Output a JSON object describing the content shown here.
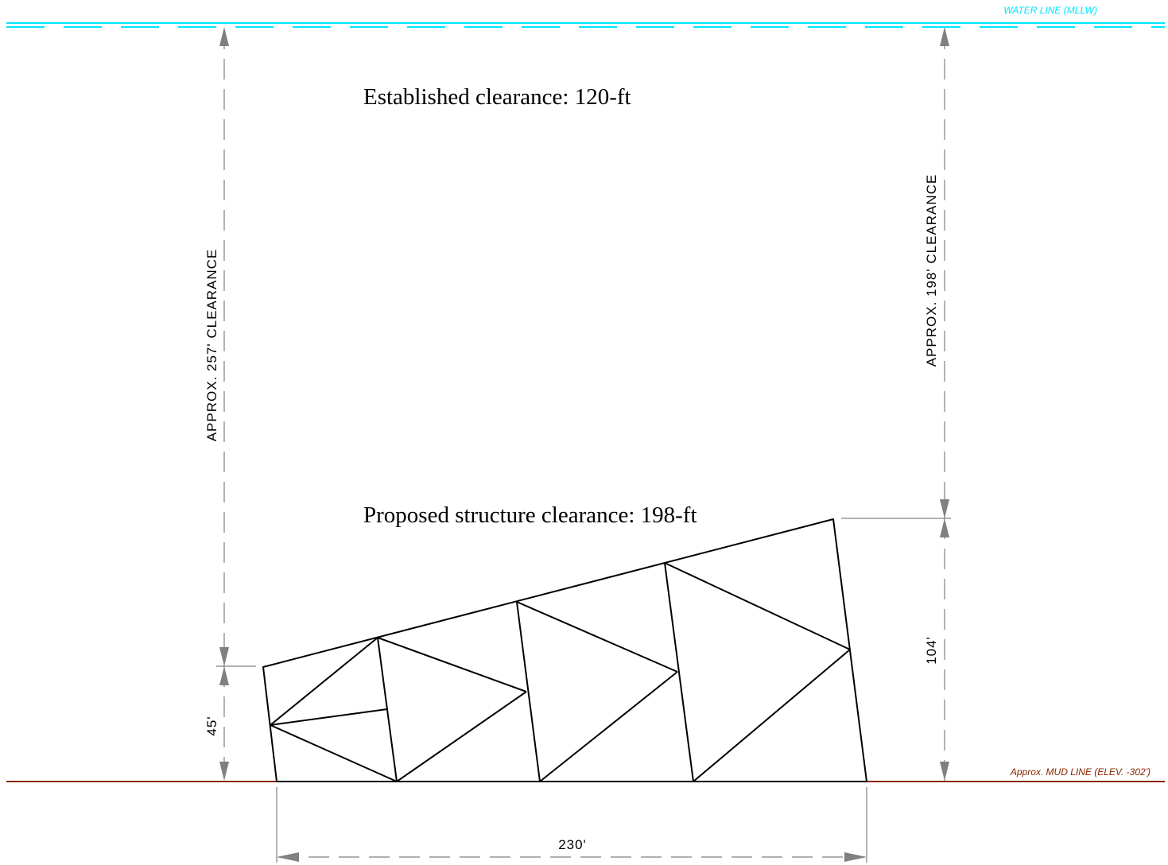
{
  "water_line": {
    "label": "WATER LINE (MLLW)",
    "color": "#00e5ff"
  },
  "mud_line": {
    "label": "Approx. MUD LINE (ELEV. -302')",
    "color": "#8b2500"
  },
  "annotations": {
    "established_clearance": "Established clearance: 120-ft",
    "proposed_clearance": "Proposed structure clearance: 198-ft"
  },
  "dimensions": {
    "left_clearance": "APPROX. 257' CLEARANCE",
    "right_clearance": "APPROX. 198' CLEARANCE",
    "left_height": "45'",
    "right_height": "104'",
    "base_width": "230'"
  },
  "colors": {
    "structure": "#000000",
    "dimension": "#808080",
    "arrow": "#808080"
  }
}
